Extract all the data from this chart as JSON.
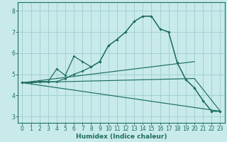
{
  "xlabel": "Humidex (Indice chaleur)",
  "bg_color": "#c8eaea",
  "grid_color": "#9ecece",
  "line_color": "#1e6e5e",
  "xlim": [
    -0.5,
    23.5
  ],
  "ylim": [
    2.7,
    8.4
  ],
  "xticks": [
    0,
    1,
    2,
    3,
    4,
    5,
    6,
    7,
    8,
    9,
    10,
    11,
    12,
    13,
    14,
    15,
    16,
    17,
    18,
    19,
    20,
    21,
    22,
    23
  ],
  "yticks": [
    3,
    4,
    5,
    6,
    7,
    8
  ],
  "line1_x": [
    0,
    1,
    2,
    3,
    4,
    5,
    6,
    7,
    8,
    9,
    10,
    11,
    12,
    13,
    14,
    15,
    16,
    17,
    18,
    19,
    20,
    21,
    22,
    23
  ],
  "line1_y": [
    4.6,
    4.6,
    4.65,
    4.65,
    4.65,
    4.8,
    5.0,
    5.15,
    5.35,
    5.6,
    6.35,
    6.65,
    7.0,
    7.5,
    7.75,
    7.75,
    7.15,
    7.0,
    5.55,
    4.75,
    4.35,
    3.75,
    3.25,
    3.25
  ],
  "line2_x": [
    0,
    1,
    2,
    3,
    4,
    5,
    6,
    7,
    8,
    9,
    10,
    11,
    12,
    13,
    14,
    15,
    16,
    17,
    18,
    19,
    20,
    21,
    22,
    23
  ],
  "line2_y": [
    4.6,
    4.6,
    4.65,
    4.65,
    5.25,
    4.95,
    5.85,
    5.6,
    5.35,
    5.6,
    6.35,
    6.65,
    7.0,
    7.5,
    7.75,
    7.75,
    7.15,
    7.0,
    5.55,
    4.75,
    4.35,
    3.75,
    3.25,
    3.25
  ],
  "line3_x": [
    0,
    23
  ],
  "line3_y": [
    4.6,
    3.25
  ],
  "line4_x": [
    0,
    20,
    23
  ],
  "line4_y": [
    4.6,
    4.8,
    3.25
  ],
  "line5_x": [
    0,
    20
  ],
  "line5_y": [
    4.6,
    5.6
  ]
}
